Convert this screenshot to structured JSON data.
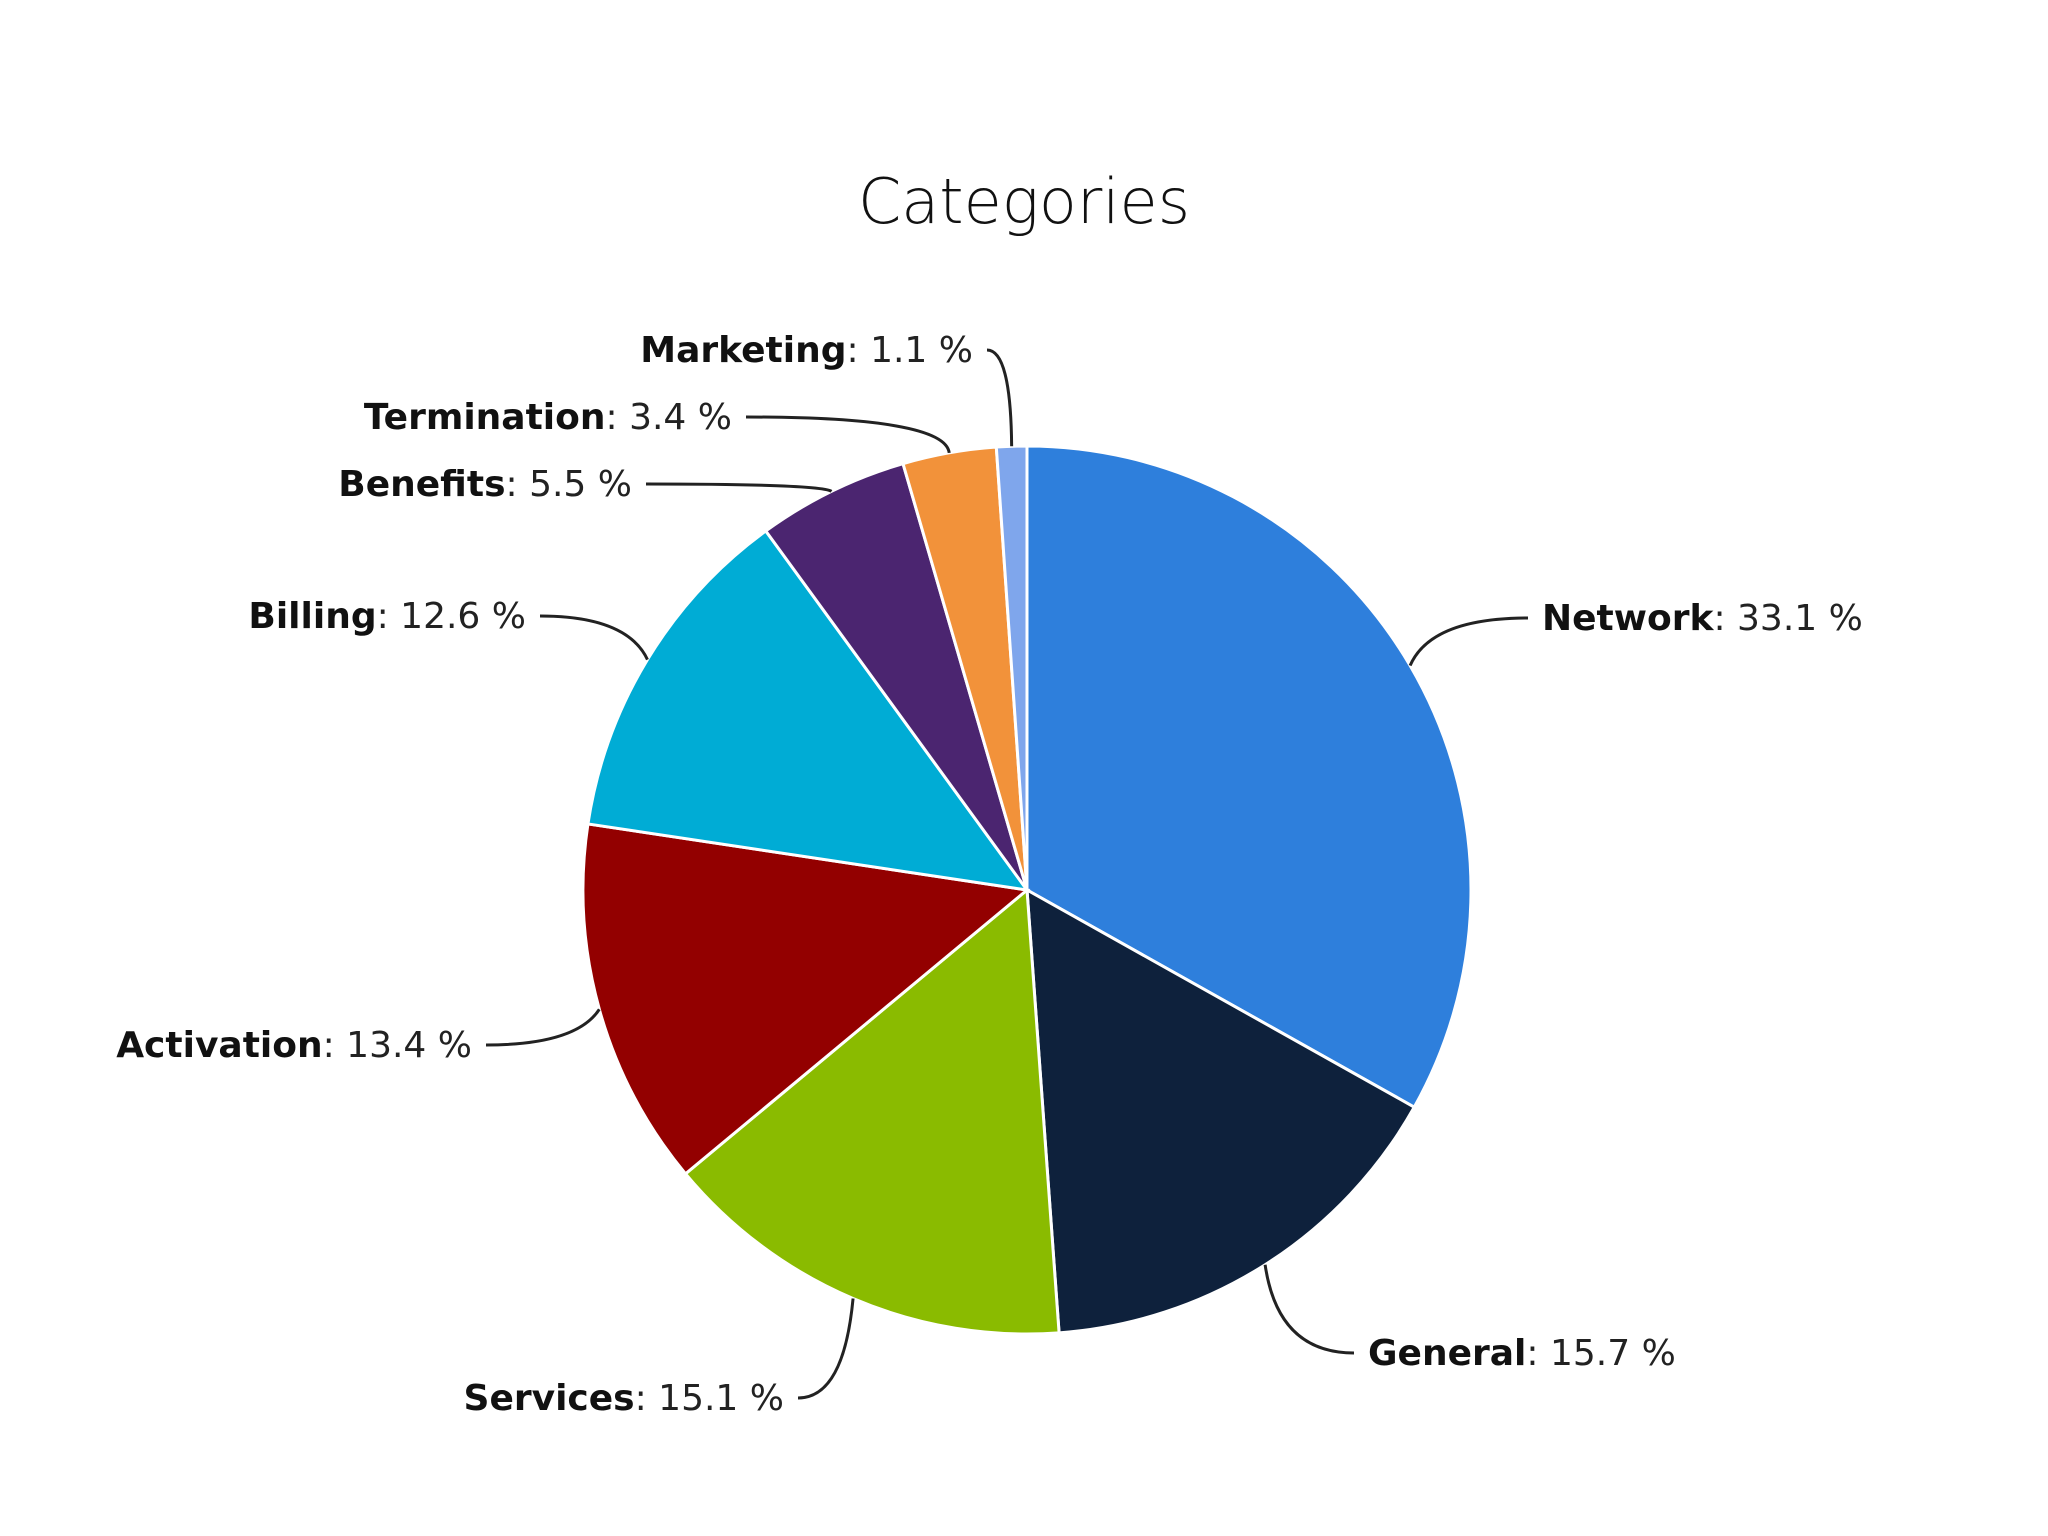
{
  "title": "Categories",
  "chart_data": {
    "type": "pie",
    "title": "Categories",
    "value_suffix": " %",
    "slices": [
      {
        "name": "Network",
        "value": 33.1,
        "color": "#2e7fdc"
      },
      {
        "name": "General",
        "value": 15.7,
        "color": "#0e213c"
      },
      {
        "name": "Services",
        "value": 15.1,
        "color": "#8abb00"
      },
      {
        "name": "Activation",
        "value": 13.4,
        "color": "#930000"
      },
      {
        "name": "Billing",
        "value": 12.6,
        "color": "#00acd5"
      },
      {
        "name": "Benefits",
        "value": 5.5,
        "color": "#4b2570"
      },
      {
        "name": "Termination",
        "value": 3.4,
        "color": "#f2923a"
      },
      {
        "name": "Marketing",
        "value": 1.1,
        "color": "#7fa6ec"
      }
    ]
  }
}
